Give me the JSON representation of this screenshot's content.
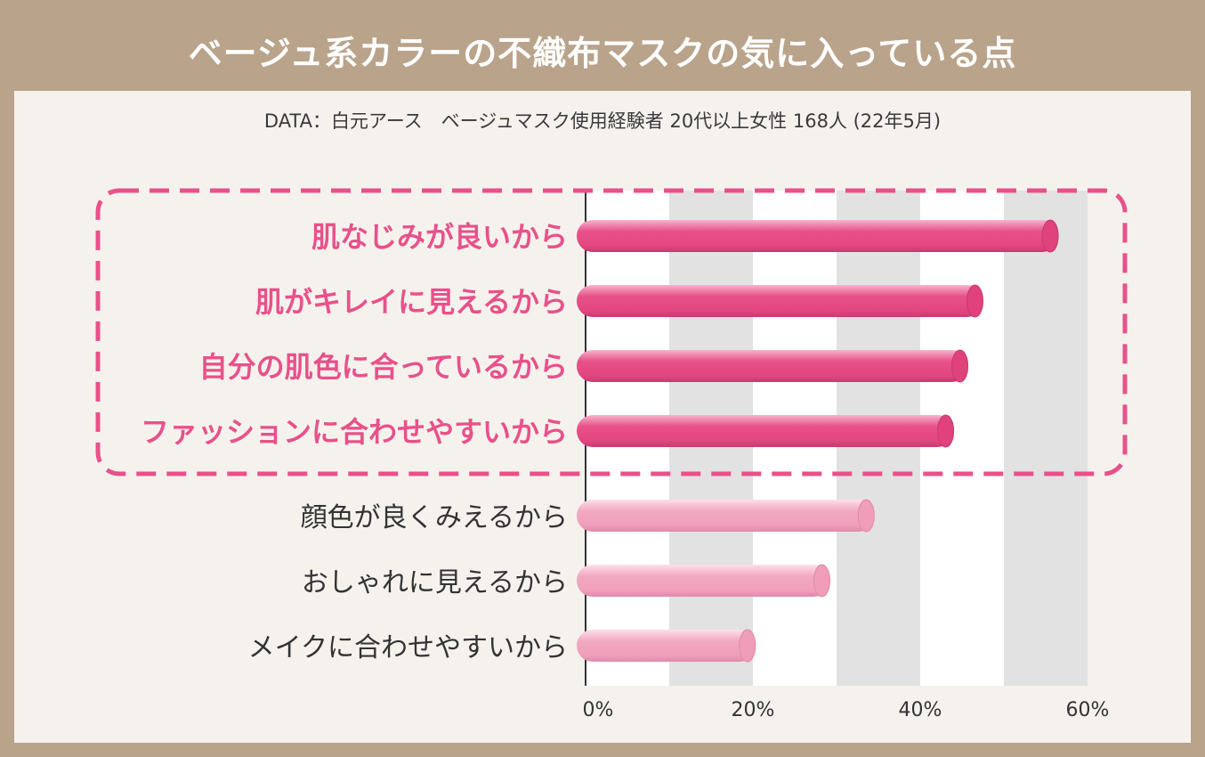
{
  "title": "ベージュ系カラーの不織布マスクの気に入っている点",
  "subtitle": "DATA：白元アース　ベージュマスク使用経験者 20代以上女性 168人 (22年5月)",
  "colors": {
    "frame": "#b9a38b",
    "panel": "#f5f2ee",
    "highlight": "#e8518a",
    "highlight_light": "#f4a7c4",
    "normal_bar": "#f3a9c2",
    "normal_bar_light": "#fbd7e3",
    "label_highlight": "#e8518a",
    "label_normal": "#333333",
    "band": "#e2e2e2"
  },
  "chart_data": {
    "type": "bar",
    "orientation": "horizontal",
    "title": "ベージュ系カラーの不織布マスクの気に入っている点",
    "xlabel": "",
    "ylabel": "",
    "xlim": [
      0,
      60
    ],
    "ticks": [
      {
        "value": 0,
        "label": "0%"
      },
      {
        "value": 20,
        "label": "20%"
      },
      {
        "value": 40,
        "label": "40%"
      },
      {
        "value": 60,
        "label": "60%"
      }
    ],
    "bands": [
      [
        10,
        20
      ],
      [
        30,
        40
      ],
      [
        50,
        60
      ]
    ],
    "categories": [
      "肌なじみが良いから",
      "肌がキレイに見えるから",
      "自分の肌色に合っているから",
      "ファッションに合わせやすいから",
      "顔色が良くみえるから",
      "おしゃれに見えるから",
      "メイクに合わせやすいから"
    ],
    "values": [
      56.5,
      47.5,
      45.7,
      44.0,
      34.5,
      29.2,
      20.3
    ],
    "highlighted": [
      true,
      true,
      true,
      true,
      false,
      false,
      false
    ]
  }
}
